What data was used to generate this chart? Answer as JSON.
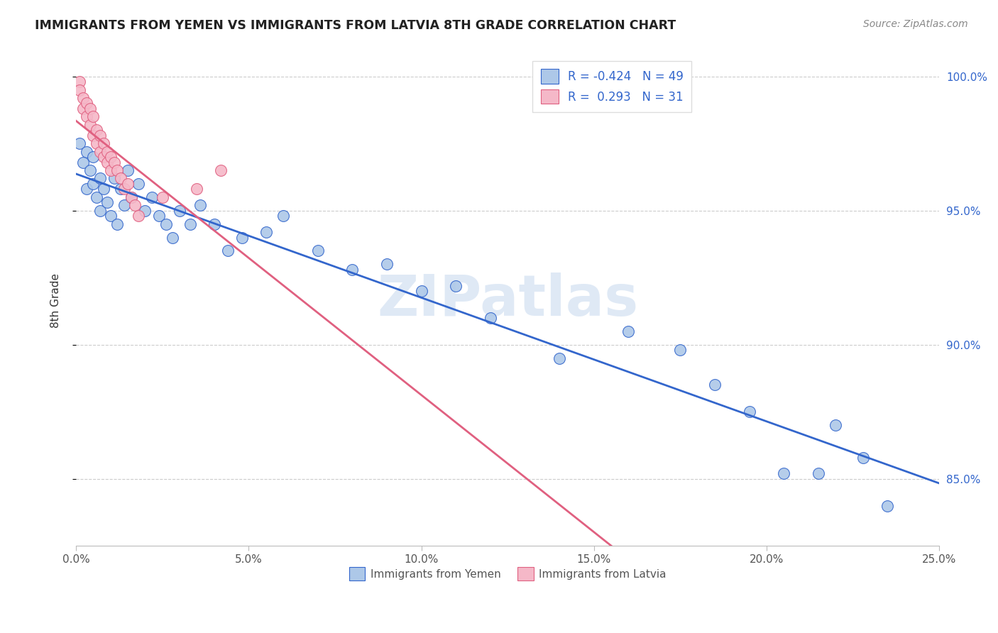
{
  "title": "IMMIGRANTS FROM YEMEN VS IMMIGRANTS FROM LATVIA 8TH GRADE CORRELATION CHART",
  "source": "Source: ZipAtlas.com",
  "ylabel": "8th Grade",
  "xmin": 0.0,
  "xmax": 0.25,
  "ymin": 0.825,
  "ymax": 1.008,
  "R_yemen": -0.424,
  "N_yemen": 49,
  "R_latvia": 0.293,
  "N_latvia": 31,
  "color_yemen": "#adc8e8",
  "color_latvia": "#f5b8c8",
  "line_color_yemen": "#3366cc",
  "line_color_latvia": "#e06080",
  "watermark_text": "ZIPatlas",
  "ytick_vals": [
    0.85,
    0.9,
    0.95,
    1.0
  ],
  "ytick_labels": [
    "85.0%",
    "90.0%",
    "95.0%",
    "100.0%"
  ],
  "xtick_vals": [
    0.0,
    0.05,
    0.1,
    0.15,
    0.2,
    0.25
  ],
  "xtick_labels": [
    "0.0%",
    "5.0%",
    "10.0%",
    "15.0%",
    "20.0%",
    "25.0%"
  ],
  "legend_label_yemen": "Immigrants from Yemen",
  "legend_label_latvia": "Immigrants from Latvia",
  "yemen_x": [
    0.001,
    0.002,
    0.003,
    0.003,
    0.004,
    0.005,
    0.005,
    0.006,
    0.007,
    0.007,
    0.008,
    0.009,
    0.01,
    0.011,
    0.012,
    0.013,
    0.014,
    0.015,
    0.016,
    0.018,
    0.02,
    0.022,
    0.024,
    0.026,
    0.028,
    0.03,
    0.033,
    0.036,
    0.04,
    0.044,
    0.048,
    0.055,
    0.06,
    0.07,
    0.08,
    0.09,
    0.1,
    0.11,
    0.12,
    0.14,
    0.16,
    0.175,
    0.185,
    0.195,
    0.205,
    0.215,
    0.22,
    0.228,
    0.235
  ],
  "yemen_y": [
    0.975,
    0.968,
    0.972,
    0.958,
    0.965,
    0.96,
    0.97,
    0.955,
    0.962,
    0.95,
    0.958,
    0.953,
    0.948,
    0.962,
    0.945,
    0.958,
    0.952,
    0.965,
    0.955,
    0.96,
    0.95,
    0.955,
    0.948,
    0.945,
    0.94,
    0.95,
    0.945,
    0.952,
    0.945,
    0.935,
    0.94,
    0.942,
    0.948,
    0.935,
    0.928,
    0.93,
    0.92,
    0.922,
    0.91,
    0.895,
    0.905,
    0.898,
    0.885,
    0.875,
    0.852,
    0.852,
    0.87,
    0.858,
    0.84
  ],
  "latvia_x": [
    0.001,
    0.001,
    0.002,
    0.002,
    0.003,
    0.003,
    0.004,
    0.004,
    0.005,
    0.005,
    0.006,
    0.006,
    0.007,
    0.007,
    0.008,
    0.008,
    0.009,
    0.009,
    0.01,
    0.01,
    0.011,
    0.012,
    0.013,
    0.014,
    0.015,
    0.016,
    0.017,
    0.018,
    0.025,
    0.035,
    0.042
  ],
  "latvia_y": [
    0.998,
    0.995,
    0.992,
    0.988,
    0.99,
    0.985,
    0.988,
    0.982,
    0.985,
    0.978,
    0.98,
    0.975,
    0.978,
    0.972,
    0.975,
    0.97,
    0.972,
    0.968,
    0.97,
    0.965,
    0.968,
    0.965,
    0.962,
    0.958,
    0.96,
    0.955,
    0.952,
    0.948,
    0.955,
    0.958,
    0.965
  ]
}
